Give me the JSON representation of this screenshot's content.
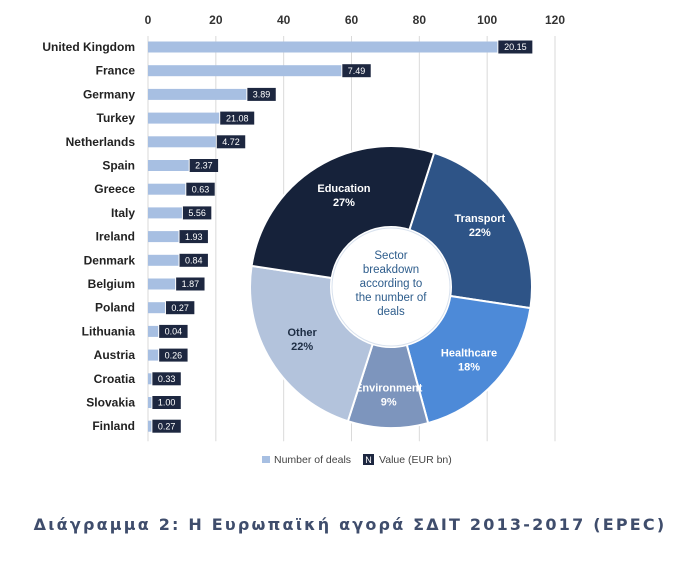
{
  "chart_data": [
    {
      "type": "bar",
      "orientation": "horizontal",
      "categories": [
        "United Kingdom",
        "France",
        "Germany",
        "Turkey",
        "Netherlands",
        "Spain",
        "Greece",
        "Italy",
        "Ireland",
        "Denmark",
        "Belgium",
        "Poland",
        "Lithuania",
        "Austria",
        "Croatia",
        "Slovakia",
        "Finland"
      ],
      "series": [
        {
          "name": "Number of deals",
          "values": [
            103,
            57,
            29,
            21,
            20,
            12,
            11,
            10,
            9,
            9,
            8,
            5,
            3,
            3,
            1,
            1,
            1
          ]
        }
      ],
      "value_labels": [
        "20.15",
        "7.49",
        "3.89",
        "21.08",
        "4.72",
        "2.37",
        "0.63",
        "5.56",
        "1.93",
        "0.84",
        "1.87",
        "0.27",
        "0.04",
        "0.26",
        "0.33",
        "1.00",
        "0.27"
      ],
      "value_label_series": "Value (EUR bn)",
      "xlim": [
        0,
        120
      ],
      "xticks": [
        "0",
        "20",
        "40",
        "60",
        "80",
        "100",
        "120"
      ],
      "axis_position": "top",
      "grid": true,
      "legend": [
        {
          "label": "Number of deals",
          "marker": "swatch"
        },
        {
          "label": "Value (EUR bn)",
          "marker": "N"
        }
      ],
      "legend_placement": "bottom",
      "colors": {
        "bar": "#a7bfe2",
        "label_box": "#1d2740",
        "grid": "#dadada"
      }
    },
    {
      "type": "pie",
      "variant": "donut",
      "center_text": [
        "Sector",
        "breakdown",
        "according to",
        "the number of",
        "deals"
      ],
      "slices": [
        {
          "name": "Transport",
          "value": 22,
          "label": "22%",
          "color": "#2e5487"
        },
        {
          "name": "Healthcare",
          "value": 18,
          "label": "18%",
          "color": "#4d8ad8"
        },
        {
          "name": "Environment",
          "value": 9,
          "label": "9%",
          "color": "#7d95bd"
        },
        {
          "name": "Other",
          "value": 22,
          "label": "22%",
          "color": "#b3c3dc"
        },
        {
          "name": "Education",
          "value": 27,
          "label": "27%",
          "color": "#16223a"
        }
      ]
    }
  ],
  "caption": "Διάγραμμα 2: Η Ευρωπαϊκή αγορά ΣΔΙΤ 2013-2017 (EPEC)"
}
